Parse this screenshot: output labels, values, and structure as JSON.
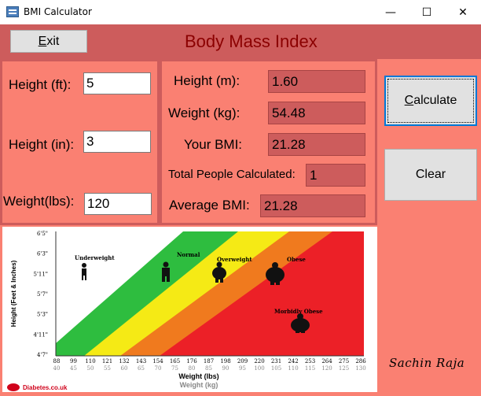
{
  "window": {
    "title": "BMI Calculator",
    "minimize_glyph": "—",
    "maximize_glyph": "☐",
    "close_glyph": "✕"
  },
  "header": {
    "exit_label_underlined": "E",
    "exit_label_rest": "xit",
    "title": "Body Mass Index"
  },
  "inputs": {
    "height_ft_label": "Height (ft):",
    "height_ft_value": "5",
    "height_in_label": "Height (in):",
    "height_in_value": "3",
    "weight_lbs_label": "Weight(lbs):",
    "weight_lbs_value": "120"
  },
  "results": {
    "height_m_label": "Height (m):",
    "height_m_value": "1.60",
    "weight_kg_label": "Weight (kg):",
    "weight_kg_value": "54.48",
    "your_bmi_label": "Your BMI:",
    "your_bmi_value": "21.28",
    "total_people_label": "Total People Calculated:",
    "total_people_value": "1",
    "average_bmi_label": "Average BMI:",
    "average_bmi_value": "21.28"
  },
  "actions": {
    "calculate_underlined": "C",
    "calculate_rest": "alculate",
    "clear_label": "Clear"
  },
  "chart": {
    "y_axis_title": "Height (Feet & Inches)",
    "y_ticks": [
      "6'5\"",
      "6'3\"",
      "5'11\"",
      "5'7\"",
      "5'3\"",
      "4'11\"",
      "4'7\""
    ],
    "x_ticks_lbs": [
      "88",
      "99",
      "110",
      "121",
      "132",
      "143",
      "154",
      "165",
      "176",
      "187",
      "198",
      "209",
      "220",
      "231",
      "242",
      "253",
      "264",
      "275",
      "286"
    ],
    "x_ticks_kg": [
      "40",
      "45",
      "50",
      "55",
      "60",
      "65",
      "70",
      "75",
      "80",
      "85",
      "90",
      "95",
      "100",
      "105",
      "110",
      "115",
      "120",
      "125",
      "130"
    ],
    "x_axis_title_lbs": "Weight (lbs)",
    "x_axis_title_kg": "Weight (kg)",
    "zones": [
      "Underweight",
      "Normal",
      "Overweight",
      "Obese",
      "Morbidly Obese"
    ],
    "zone_colors": {
      "Underweight": "#ffffff",
      "Normal": "#2ebd3f",
      "Overweight": "#f5ea15",
      "Obese": "#f07a1e",
      "Morbidly Obese": "#ec2027"
    },
    "source_logo_text": "Diabetes.co.uk"
  },
  "footer": {
    "signature": "Sachin Raja"
  }
}
